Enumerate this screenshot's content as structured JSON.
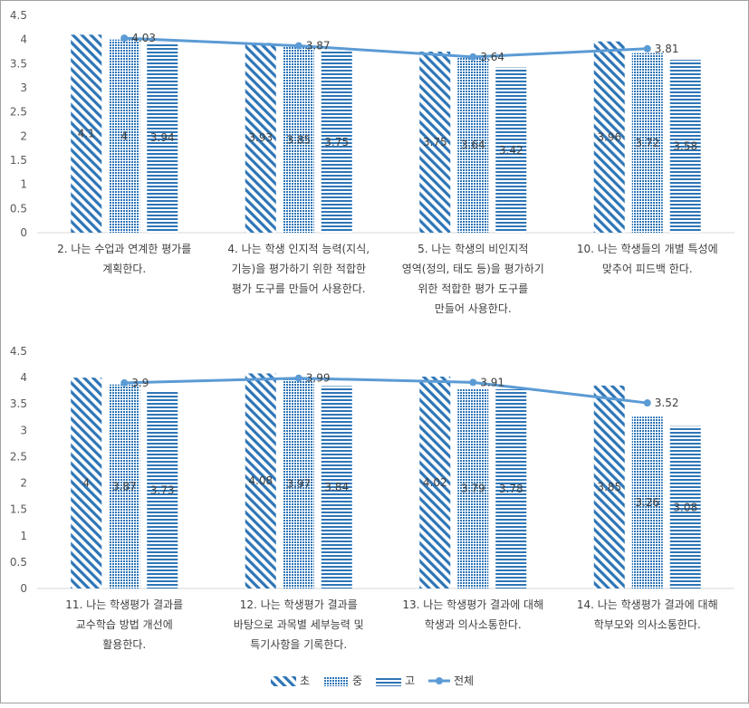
{
  "colors": {
    "primary": "#2e75b6",
    "line": "#5b9bd5",
    "axis_text": "#595959",
    "label_text": "#404040"
  },
  "legend": [
    {
      "key": "elem",
      "label": "초",
      "pattern": "diagonal"
    },
    {
      "key": "mid",
      "label": "중",
      "pattern": "dots"
    },
    {
      "key": "high",
      "label": "고",
      "pattern": "horizontal"
    },
    {
      "key": "total",
      "label": "전체",
      "pattern": "line-marker"
    }
  ],
  "chart_data": [
    {
      "type": "bar",
      "ylim": [
        0,
        4.5
      ],
      "yticks": [
        "0",
        "0.5",
        "1",
        "1.5",
        "2",
        "2.5",
        "3",
        "3.5",
        "4",
        "4.5"
      ],
      "grid": false,
      "legend_position": "bottom",
      "categories": [
        [
          "2. 나는 수업과 연계한 평가를",
          "계획한다."
        ],
        [
          "4. 나는 학생 인지적 능력(지식,",
          "기능)을 평가하기 위한 적합한",
          "평가 도구를 만들어 사용한다."
        ],
        [
          "5. 나는 학생의 비인지적",
          "영역(정의, 태도 등)을 평가하기",
          "위한 적합한 평가 도구를",
          "만들어 사용한다."
        ],
        [
          "10. 나는 학생들의 개별 특성에",
          "맞추어 피드백 한다."
        ]
      ],
      "series": [
        {
          "name": "초",
          "type": "bar",
          "values": [
            4.1,
            3.93,
            3.75,
            3.96
          ],
          "labels": [
            "4.1",
            "3.93",
            "3.75",
            "3.96"
          ]
        },
        {
          "name": "중",
          "type": "bar",
          "values": [
            4.0,
            3.85,
            3.64,
            3.72
          ],
          "labels": [
            "4",
            "3.85",
            "3.64",
            "3.72"
          ]
        },
        {
          "name": "고",
          "type": "bar",
          "values": [
            3.94,
            3.75,
            3.42,
            3.58
          ],
          "labels": [
            "3.94",
            "3.75",
            "3.42",
            "3.58"
          ]
        },
        {
          "name": "전체",
          "type": "line",
          "values": [
            4.03,
            3.87,
            3.64,
            3.81
          ],
          "labels": [
            "4.03",
            "3.87",
            "3.64",
            "3.81"
          ]
        }
      ]
    },
    {
      "type": "bar",
      "ylim": [
        0,
        4.5
      ],
      "yticks": [
        "0",
        "0.5",
        "1",
        "1.5",
        "2",
        "2.5",
        "3",
        "3.5",
        "4",
        "4.5"
      ],
      "grid": false,
      "legend_position": "bottom",
      "categories": [
        [
          "11. 나는 학생평가 결과를",
          "교수학습 방법 개선에",
          "활용한다."
        ],
        [
          "12. 나는 학생평가 결과를",
          "바탕으로 과목별 세부능력 및",
          "특기사항을 기록한다."
        ],
        [
          "13. 나는 학생평가 결과에 대해",
          "학생과 의사소통한다."
        ],
        [
          "14. 나는 학생평가 결과에 대해",
          "학부모와 의사소통한다."
        ]
      ],
      "series": [
        {
          "name": "초",
          "type": "bar",
          "values": [
            4.0,
            4.08,
            4.02,
            3.85
          ],
          "labels": [
            "4",
            "4.08",
            "4.02",
            "3.85"
          ]
        },
        {
          "name": "중",
          "type": "bar",
          "values": [
            3.87,
            3.97,
            3.79,
            3.26
          ],
          "labels": [
            "3.87",
            "3.97",
            "3.79",
            "3.26"
          ]
        },
        {
          "name": "고",
          "type": "bar",
          "values": [
            3.73,
            3.84,
            3.78,
            3.08
          ],
          "labels": [
            "3.73",
            "3.84",
            "3.78",
            "3.08"
          ]
        },
        {
          "name": "전체",
          "type": "line",
          "values": [
            3.9,
            3.99,
            3.91,
            3.52
          ],
          "labels": [
            "3.9",
            "3.99",
            "3.91",
            "3.52"
          ]
        }
      ]
    }
  ]
}
